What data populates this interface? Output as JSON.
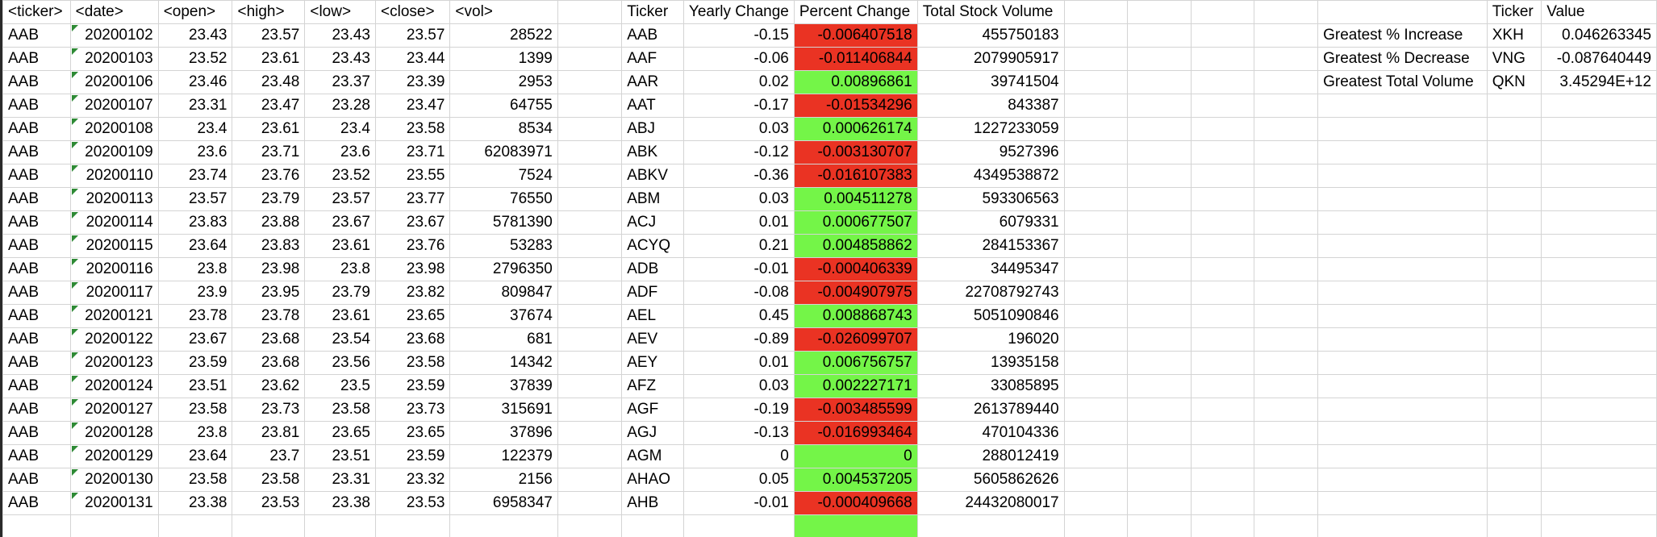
{
  "raw_headers": [
    "<ticker>",
    "<date>",
    "<open>",
    "<high>",
    "<low>",
    "<close>",
    "<vol>"
  ],
  "summary_headers": [
    "Ticker",
    "Yearly Change",
    "Percent Change",
    "Total Stock Volume"
  ],
  "stats_headers": [
    "Ticker",
    "Value"
  ],
  "rows": [
    {
      "ticker": "AAB",
      "date": "20200102",
      "open": "23.43",
      "high": "23.57",
      "low": "23.43",
      "close": "23.57",
      "vol": "28522",
      "s_ticker": "AAB",
      "yearly": "-0.15",
      "pct": "-0.006407518",
      "total": "455750183",
      "pct_status": "negative"
    },
    {
      "ticker": "AAB",
      "date": "20200103",
      "open": "23.52",
      "high": "23.61",
      "low": "23.43",
      "close": "23.44",
      "vol": "1399",
      "s_ticker": "AAF",
      "yearly": "-0.06",
      "pct": "-0.011406844",
      "total": "2079905917",
      "pct_status": "negative"
    },
    {
      "ticker": "AAB",
      "date": "20200106",
      "open": "23.46",
      "high": "23.48",
      "low": "23.37",
      "close": "23.39",
      "vol": "2953",
      "s_ticker": "AAR",
      "yearly": "0.02",
      "pct": "0.00896861",
      "total": "39741504",
      "pct_status": "positive"
    },
    {
      "ticker": "AAB",
      "date": "20200107",
      "open": "23.31",
      "high": "23.47",
      "low": "23.28",
      "close": "23.47",
      "vol": "64755",
      "s_ticker": "AAT",
      "yearly": "-0.17",
      "pct": "-0.01534296",
      "total": "843387",
      "pct_status": "negative"
    },
    {
      "ticker": "AAB",
      "date": "20200108",
      "open": "23.4",
      "high": "23.61",
      "low": "23.4",
      "close": "23.58",
      "vol": "8534",
      "s_ticker": "ABJ",
      "yearly": "0.03",
      "pct": "0.000626174",
      "total": "1227233059",
      "pct_status": "positive"
    },
    {
      "ticker": "AAB",
      "date": "20200109",
      "open": "23.6",
      "high": "23.71",
      "low": "23.6",
      "close": "23.71",
      "vol": "62083971",
      "s_ticker": "ABK",
      "yearly": "-0.12",
      "pct": "-0.003130707",
      "total": "9527396",
      "pct_status": "negative"
    },
    {
      "ticker": "AAB",
      "date": "20200110",
      "open": "23.74",
      "high": "23.76",
      "low": "23.52",
      "close": "23.55",
      "vol": "7524",
      "s_ticker": "ABKV",
      "yearly": "-0.36",
      "pct": "-0.016107383",
      "total": "4349538872",
      "pct_status": "negative"
    },
    {
      "ticker": "AAB",
      "date": "20200113",
      "open": "23.57",
      "high": "23.79",
      "low": "23.57",
      "close": "23.77",
      "vol": "76550",
      "s_ticker": "ABM",
      "yearly": "0.03",
      "pct": "0.004511278",
      "total": "593306563",
      "pct_status": "positive"
    },
    {
      "ticker": "AAB",
      "date": "20200114",
      "open": "23.83",
      "high": "23.88",
      "low": "23.67",
      "close": "23.67",
      "vol": "5781390",
      "s_ticker": "ACJ",
      "yearly": "0.01",
      "pct": "0.000677507",
      "total": "6079331",
      "pct_status": "positive"
    },
    {
      "ticker": "AAB",
      "date": "20200115",
      "open": "23.64",
      "high": "23.83",
      "low": "23.61",
      "close": "23.76",
      "vol": "53283",
      "s_ticker": "ACYQ",
      "yearly": "0.21",
      "pct": "0.004858862",
      "total": "284153367",
      "pct_status": "positive"
    },
    {
      "ticker": "AAB",
      "date": "20200116",
      "open": "23.8",
      "high": "23.98",
      "low": "23.8",
      "close": "23.98",
      "vol": "2796350",
      "s_ticker": "ADB",
      "yearly": "-0.01",
      "pct": "-0.000406339",
      "total": "34495347",
      "pct_status": "negative"
    },
    {
      "ticker": "AAB",
      "date": "20200117",
      "open": "23.9",
      "high": "23.95",
      "low": "23.79",
      "close": "23.82",
      "vol": "809847",
      "s_ticker": "ADF",
      "yearly": "-0.08",
      "pct": "-0.004907975",
      "total": "22708792743",
      "pct_status": "negative"
    },
    {
      "ticker": "AAB",
      "date": "20200121",
      "open": "23.78",
      "high": "23.78",
      "low": "23.61",
      "close": "23.65",
      "vol": "37674",
      "s_ticker": "AEL",
      "yearly": "0.45",
      "pct": "0.008868743",
      "total": "5051090846",
      "pct_status": "positive"
    },
    {
      "ticker": "AAB",
      "date": "20200122",
      "open": "23.67",
      "high": "23.68",
      "low": "23.54",
      "close": "23.68",
      "vol": "681",
      "s_ticker": "AEV",
      "yearly": "-0.89",
      "pct": "-0.026099707",
      "total": "196020",
      "pct_status": "negative"
    },
    {
      "ticker": "AAB",
      "date": "20200123",
      "open": "23.59",
      "high": "23.68",
      "low": "23.56",
      "close": "23.58",
      "vol": "14342",
      "s_ticker": "AEY",
      "yearly": "0.01",
      "pct": "0.006756757",
      "total": "13935158",
      "pct_status": "positive"
    },
    {
      "ticker": "AAB",
      "date": "20200124",
      "open": "23.51",
      "high": "23.62",
      "low": "23.5",
      "close": "23.59",
      "vol": "37839",
      "s_ticker": "AFZ",
      "yearly": "0.03",
      "pct": "0.002227171",
      "total": "33085895",
      "pct_status": "positive"
    },
    {
      "ticker": "AAB",
      "date": "20200127",
      "open": "23.58",
      "high": "23.73",
      "low": "23.58",
      "close": "23.73",
      "vol": "315691",
      "s_ticker": "AGF",
      "yearly": "-0.19",
      "pct": "-0.003485599",
      "total": "2613789440",
      "pct_status": "negative"
    },
    {
      "ticker": "AAB",
      "date": "20200128",
      "open": "23.8",
      "high": "23.81",
      "low": "23.65",
      "close": "23.65",
      "vol": "37896",
      "s_ticker": "AGJ",
      "yearly": "-0.13",
      "pct": "-0.016993464",
      "total": "470104336",
      "pct_status": "negative"
    },
    {
      "ticker": "AAB",
      "date": "20200129",
      "open": "23.64",
      "high": "23.7",
      "low": "23.51",
      "close": "23.59",
      "vol": "122379",
      "s_ticker": "AGM",
      "yearly": "0",
      "pct": "0",
      "total": "288012419",
      "pct_status": "positive"
    },
    {
      "ticker": "AAB",
      "date": "20200130",
      "open": "23.58",
      "high": "23.58",
      "low": "23.31",
      "close": "23.32",
      "vol": "2156",
      "s_ticker": "AHAO",
      "yearly": "0.05",
      "pct": "0.004537205",
      "total": "5605862626",
      "pct_status": "positive"
    },
    {
      "ticker": "AAB",
      "date": "20200131",
      "open": "23.38",
      "high": "23.53",
      "low": "23.38",
      "close": "23.53",
      "vol": "6958347",
      "s_ticker": "AHB",
      "yearly": "-0.01",
      "pct": "-0.000409668",
      "total": "24432080017",
      "pct_status": "negative"
    },
    {
      "ticker": "",
      "date": "",
      "open": "",
      "high": "",
      "low": "",
      "close": "",
      "vol": "",
      "s_ticker": "",
      "yearly": "",
      "pct": "",
      "total": "",
      "pct_status": "positive"
    }
  ],
  "stats": [
    {
      "label": "Greatest % Increase",
      "ticker": "XKH",
      "value": "0.046263345"
    },
    {
      "label": "Greatest % Decrease",
      "ticker": "VNG",
      "value": "-0.087640449"
    },
    {
      "label": "Greatest Total Volume",
      "ticker": "QKN",
      "value": "3.45294E+12"
    }
  ],
  "colors": {
    "positive": "#74f548",
    "negative": "#ea3323",
    "error_marker": "#2e8a35"
  }
}
